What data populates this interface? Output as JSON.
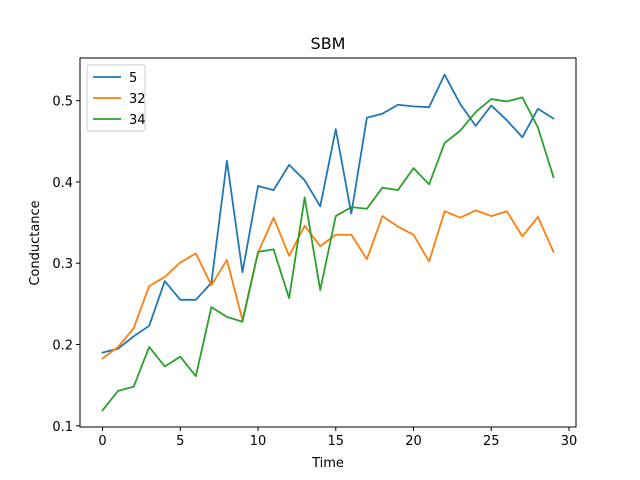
{
  "chart_data": {
    "type": "line",
    "title": "SBM",
    "xlabel": "Time",
    "ylabel": "Conductance",
    "xlim": [
      -1.45,
      30.45
    ],
    "ylim": [
      0.0985,
      0.5525
    ],
    "xticks": [
      0,
      5,
      10,
      15,
      20,
      25,
      30
    ],
    "yticks": [
      0.1,
      0.2,
      0.3,
      0.4,
      0.5
    ],
    "grid": false,
    "legend_position": "top-left",
    "x": [
      0,
      1,
      2,
      3,
      4,
      5,
      6,
      7,
      8,
      9,
      10,
      11,
      12,
      13,
      14,
      15,
      16,
      17,
      18,
      19,
      20,
      21,
      22,
      23,
      24,
      25,
      26,
      27,
      28,
      29
    ],
    "series": [
      {
        "name": "5",
        "color": "#1f77b4",
        "values": [
          0.19,
          0.195,
          0.21,
          0.223,
          0.278,
          0.255,
          0.255,
          0.276,
          0.426,
          0.289,
          0.395,
          0.39,
          0.421,
          0.402,
          0.37,
          0.465,
          0.361,
          0.479,
          0.484,
          0.495,
          0.493,
          0.492,
          0.532,
          0.496,
          0.469,
          0.494,
          0.476,
          0.455,
          0.49,
          0.478
        ]
      },
      {
        "name": "32",
        "color": "#ff7f0e",
        "values": [
          0.183,
          0.197,
          0.22,
          0.272,
          0.283,
          0.301,
          0.312,
          0.273,
          0.304,
          0.23,
          0.313,
          0.356,
          0.309,
          0.346,
          0.321,
          0.335,
          0.335,
          0.305,
          0.358,
          0.345,
          0.335,
          0.302,
          0.364,
          0.356,
          0.365,
          0.358,
          0.364,
          0.333,
          0.357,
          0.314
        ]
      },
      {
        "name": "34",
        "color": "#2ca02c",
        "values": [
          0.119,
          0.143,
          0.148,
          0.197,
          0.173,
          0.185,
          0.161,
          0.246,
          0.234,
          0.228,
          0.314,
          0.317,
          0.257,
          0.381,
          0.267,
          0.358,
          0.369,
          0.367,
          0.393,
          0.39,
          0.417,
          0.397,
          0.448,
          0.463,
          0.486,
          0.502,
          0.499,
          0.504,
          0.467,
          0.406
        ]
      }
    ]
  }
}
